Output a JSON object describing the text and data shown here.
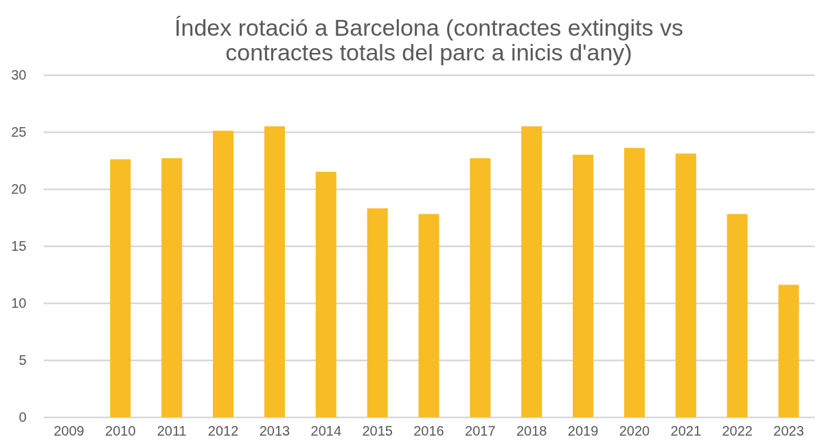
{
  "chart_data": {
    "type": "bar",
    "title": [
      "Índex rotació a Barcelona (contractes extingits vs",
      "contractes totals del parc a inicis d'any)"
    ],
    "categories": [
      "2009",
      "2010",
      "2011",
      "2012",
      "2013",
      "2014",
      "2015",
      "2016",
      "2017",
      "2018",
      "2019",
      "2020",
      "2021",
      "2022",
      "2023"
    ],
    "values": [
      null,
      22.6,
      22.7,
      25.1,
      25.5,
      21.5,
      18.3,
      17.8,
      22.7,
      25.5,
      23.0,
      23.6,
      23.1,
      17.8,
      11.6
    ],
    "color": "#f8bc24",
    "ylim": [
      0,
      30
    ],
    "yticks": [
      0,
      5,
      10,
      15,
      20,
      25,
      30
    ],
    "grid": "y"
  }
}
